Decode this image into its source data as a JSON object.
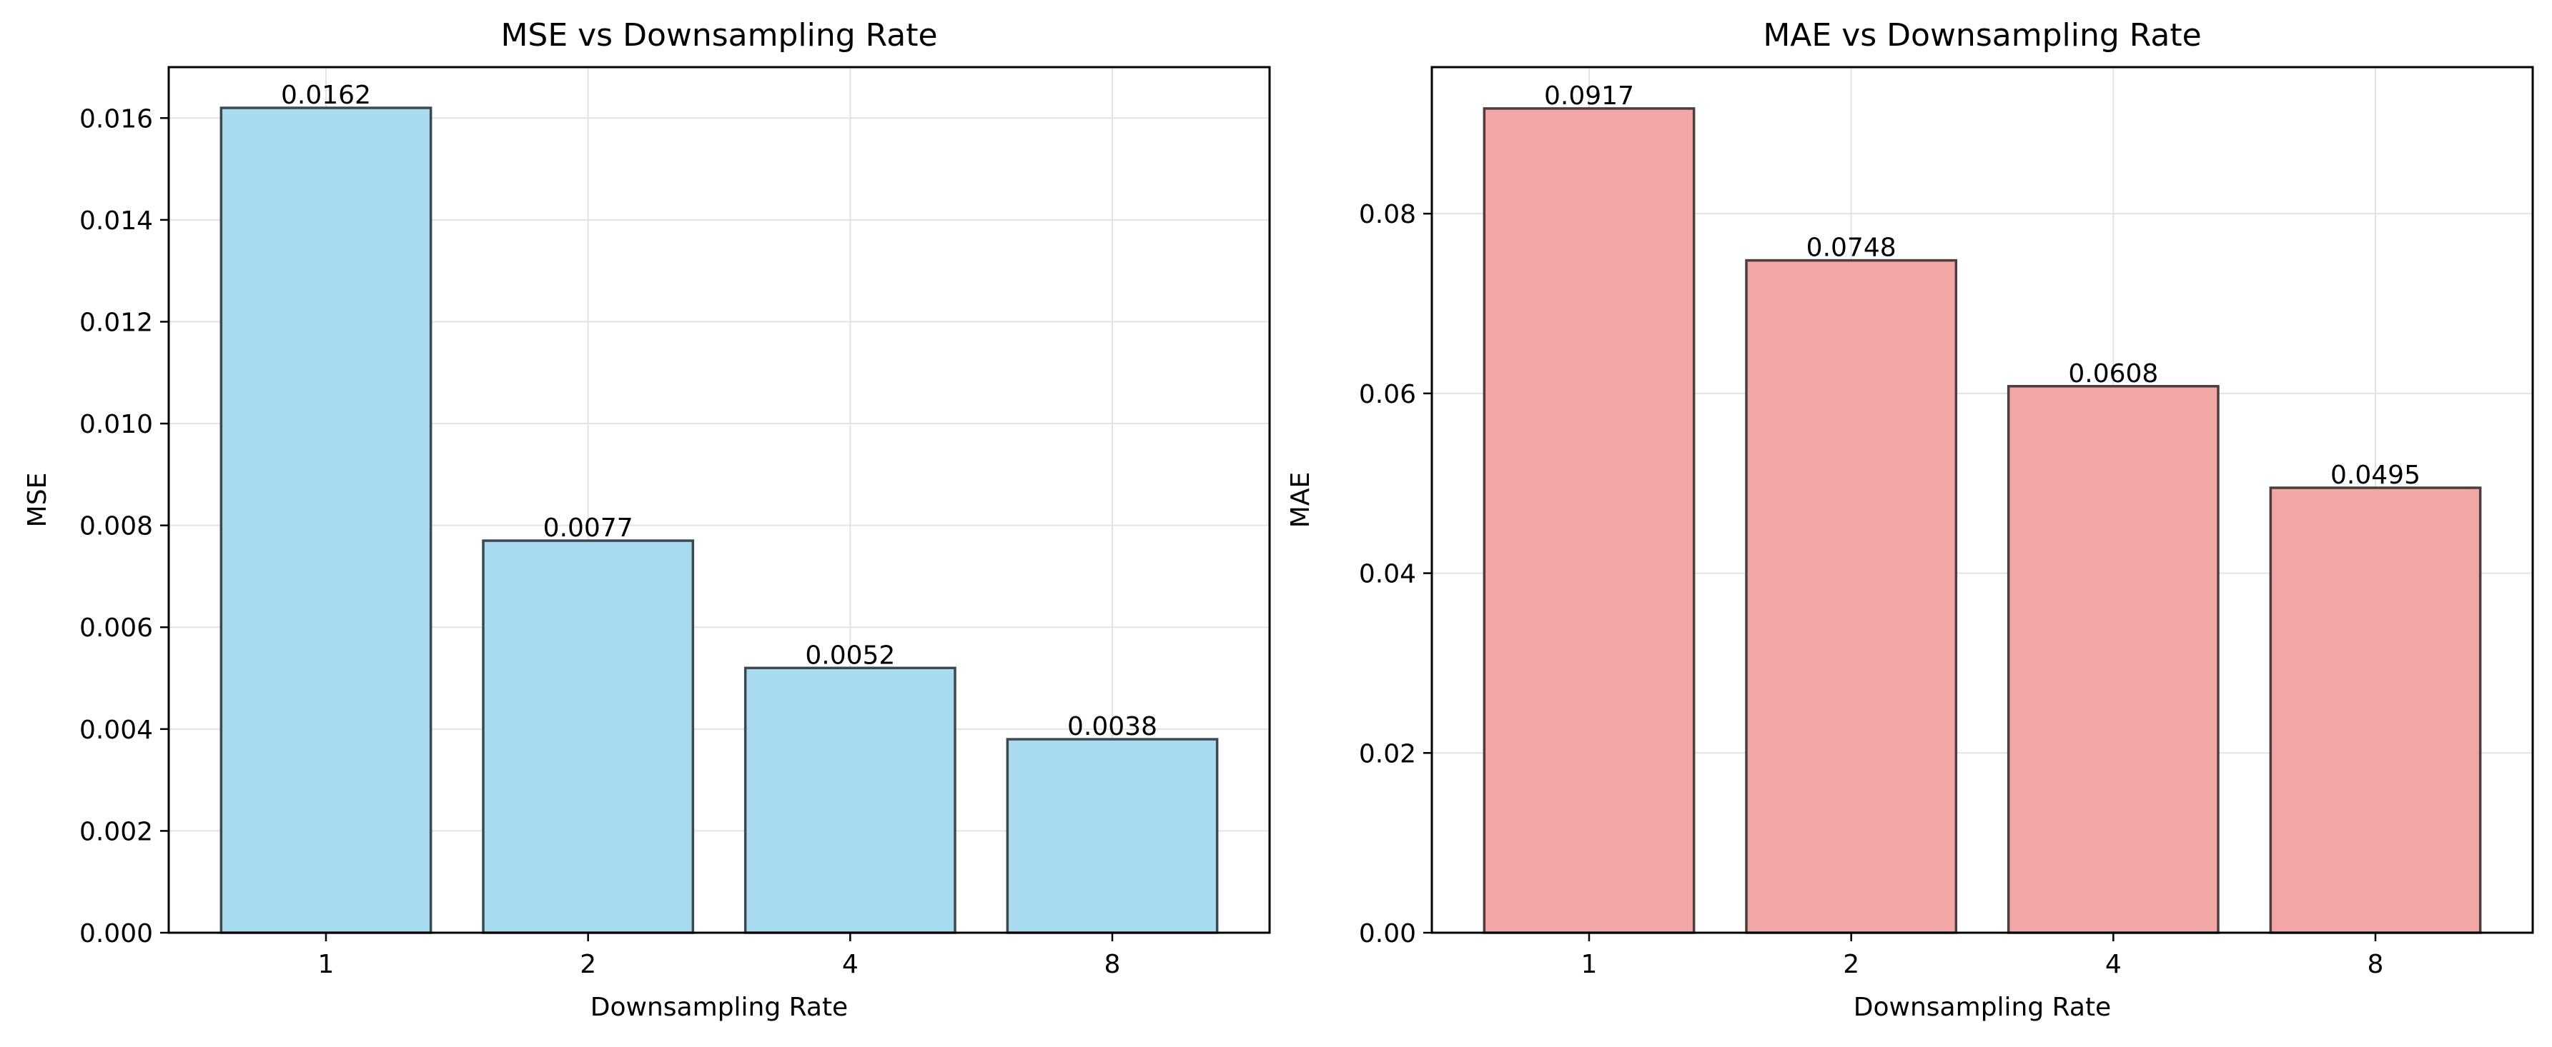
{
  "chart_data": [
    {
      "type": "bar",
      "title": "MSE vs Downsampling Rate",
      "xlabel": "Downsampling Rate",
      "ylabel": "MSE",
      "categories": [
        "1",
        "2",
        "4",
        "8"
      ],
      "values": [
        0.0162,
        0.0077,
        0.0052,
        0.0038
      ],
      "data_labels": [
        "0.0162",
        "0.0077",
        "0.0052",
        "0.0038"
      ],
      "ylim": [
        0,
        0.017
      ],
      "yticks": [
        0,
        0.002,
        0.004,
        0.006,
        0.008,
        0.01,
        0.012,
        0.014,
        0.016
      ],
      "ytick_labels": [
        "0.000",
        "0.002",
        "0.004",
        "0.006",
        "0.008",
        "0.010",
        "0.012",
        "0.014",
        "0.016"
      ],
      "grid": true,
      "bar_color": "#a8dbef",
      "edge_color": "#3b4a52"
    },
    {
      "type": "bar",
      "title": "MAE vs Downsampling Rate",
      "xlabel": "Downsampling Rate",
      "ylabel": "MAE",
      "categories": [
        "1",
        "2",
        "4",
        "8"
      ],
      "values": [
        0.0917,
        0.0748,
        0.0608,
        0.0495
      ],
      "data_labels": [
        "0.0917",
        "0.0748",
        "0.0608",
        "0.0495"
      ],
      "ylim": [
        0,
        0.0963
      ],
      "yticks": [
        0,
        0.02,
        0.04,
        0.06,
        0.08
      ],
      "ytick_labels": [
        "0.00",
        "0.02",
        "0.04",
        "0.06",
        "0.08"
      ],
      "grid": true,
      "bar_color": "#f3a6a6",
      "edge_color": "#4a3e3e"
    }
  ]
}
